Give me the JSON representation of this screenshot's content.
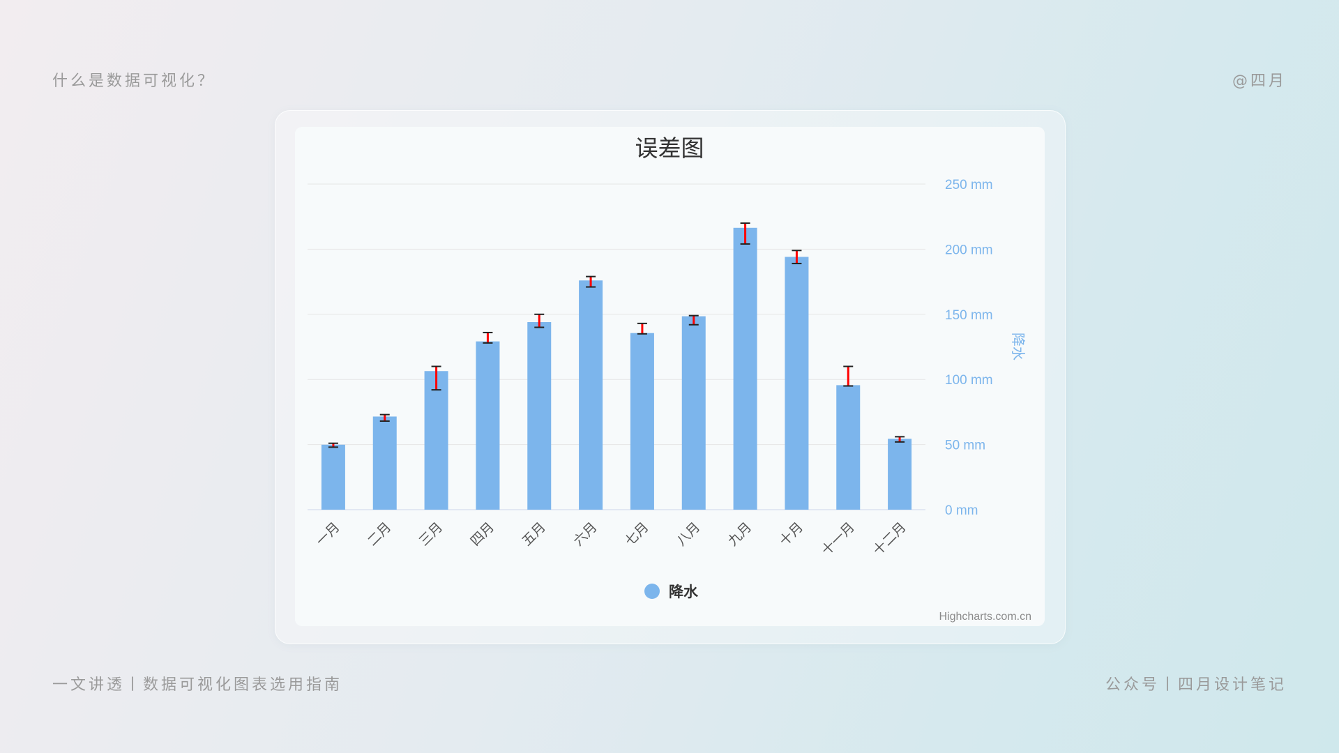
{
  "page": {
    "top_left": "什么是数据可视化？",
    "top_right": "@四月",
    "bottom_left": "一文讲透丨数据可视化图表选用指南",
    "bottom_right": "公众号丨四月设计笔记"
  },
  "chart_data": {
    "type": "bar",
    "title": "误差图",
    "categories": [
      "一月",
      "二月",
      "三月",
      "四月",
      "五月",
      "六月",
      "七月",
      "八月",
      "九月",
      "十月",
      "十一月",
      "十二月"
    ],
    "series": [
      {
        "name": "降水",
        "values": [
          49.9,
          71.5,
          106.4,
          129.2,
          144.0,
          176.0,
          135.6,
          148.5,
          216.4,
          194.1,
          95.6,
          54.4
        ],
        "error_bars": [
          [
            48,
            51
          ],
          [
            68,
            73
          ],
          [
            92,
            110
          ],
          [
            128,
            136
          ],
          [
            140,
            150
          ],
          [
            171,
            179
          ],
          [
            135,
            143
          ],
          [
            142,
            149
          ],
          [
            204,
            220
          ],
          [
            189,
            199
          ],
          [
            95,
            110
          ],
          [
            52,
            56
          ]
        ],
        "color": "#7cb5ec",
        "error_color": "#ff0000"
      }
    ],
    "ylabel": "降水",
    "ylim": [
      0,
      250
    ],
    "yticks": [
      "0 mm",
      "50 mm",
      "100 mm",
      "150 mm",
      "200 mm",
      "250 mm"
    ],
    "y_axis_side": "right",
    "grid": true,
    "legend_position": "bottom-center",
    "credits": "Highcharts.com.cn"
  }
}
